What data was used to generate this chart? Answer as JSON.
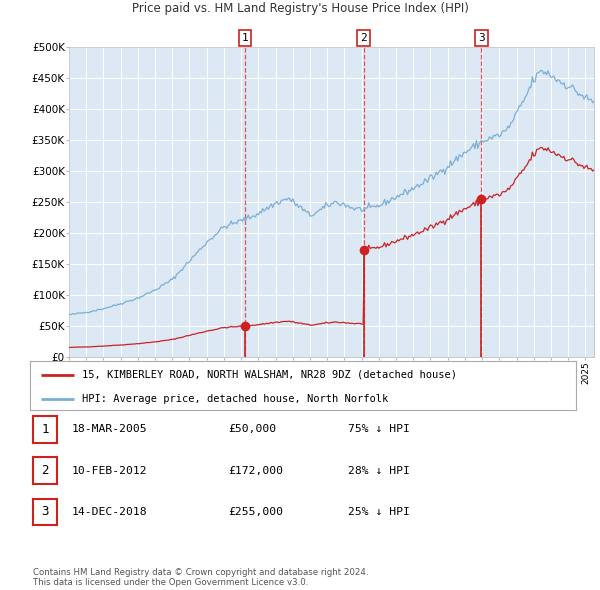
{
  "title": "15, KIMBERLEY ROAD, NORTH WALSHAM, NR28 9DZ",
  "subtitle": "Price paid vs. HM Land Registry's House Price Index (HPI)",
  "background_color": "#ffffff",
  "chart_bg_color": "#dce9f5",
  "grid_color": "#ffffff",
  "ylim": [
    0,
    500000
  ],
  "yticks": [
    0,
    50000,
    100000,
    150000,
    200000,
    250000,
    300000,
    350000,
    400000,
    450000,
    500000
  ],
  "ytick_labels": [
    "£0",
    "£50K",
    "£100K",
    "£150K",
    "£200K",
    "£250K",
    "£300K",
    "£350K",
    "£400K",
    "£450K",
    "£500K"
  ],
  "hpi_color": "#7bafd4",
  "property_color": "#cc2222",
  "sale_marker_color": "#cc2222",
  "vline_color": "#dd4444",
  "sale1_date": 2005.21,
  "sale1_price": 50000,
  "sale2_date": 2012.11,
  "sale2_price": 172000,
  "sale3_date": 2018.96,
  "sale3_price": 255000,
  "legend_property": "15, KIMBERLEY ROAD, NORTH WALSHAM, NR28 9DZ (detached house)",
  "legend_hpi": "HPI: Average price, detached house, North Norfolk",
  "table_rows": [
    [
      "1",
      "18-MAR-2005",
      "£50,000",
      "75% ↓ HPI"
    ],
    [
      "2",
      "10-FEB-2012",
      "£172,000",
      "28% ↓ HPI"
    ],
    [
      "3",
      "14-DEC-2018",
      "£255,000",
      "25% ↓ HPI"
    ]
  ],
  "footer": "Contains HM Land Registry data © Crown copyright and database right 2024.\nThis data is licensed under the Open Government Licence v3.0.",
  "hpi_waypoints": [
    [
      1995.0,
      68000
    ],
    [
      1996.0,
      72000
    ],
    [
      1997.0,
      78000
    ],
    [
      1998.0,
      86000
    ],
    [
      1999.0,
      95000
    ],
    [
      2000.0,
      108000
    ],
    [
      2001.0,
      125000
    ],
    [
      2002.0,
      155000
    ],
    [
      2003.0,
      185000
    ],
    [
      2004.0,
      210000
    ],
    [
      2005.0,
      220000
    ],
    [
      2005.5,
      225000
    ],
    [
      2006.0,
      232000
    ],
    [
      2007.0,
      248000
    ],
    [
      2007.75,
      256000
    ],
    [
      2008.5,
      240000
    ],
    [
      2009.0,
      228000
    ],
    [
      2009.5,
      235000
    ],
    [
      2010.0,
      244000
    ],
    [
      2010.5,
      250000
    ],
    [
      2011.0,
      246000
    ],
    [
      2011.5,
      240000
    ],
    [
      2012.0,
      238000
    ],
    [
      2012.5,
      240000
    ],
    [
      2013.0,
      244000
    ],
    [
      2014.0,
      258000
    ],
    [
      2015.0,
      272000
    ],
    [
      2016.0,
      288000
    ],
    [
      2017.0,
      308000
    ],
    [
      2018.0,
      330000
    ],
    [
      2019.0,
      348000
    ],
    [
      2020.0,
      358000
    ],
    [
      2020.5,
      368000
    ],
    [
      2021.0,
      392000
    ],
    [
      2021.5,
      418000
    ],
    [
      2022.0,
      448000
    ],
    [
      2022.5,
      462000
    ],
    [
      2023.0,
      455000
    ],
    [
      2023.5,
      445000
    ],
    [
      2024.0,
      438000
    ],
    [
      2024.5,
      428000
    ],
    [
      2025.0,
      418000
    ],
    [
      2025.4,
      412000
    ]
  ]
}
